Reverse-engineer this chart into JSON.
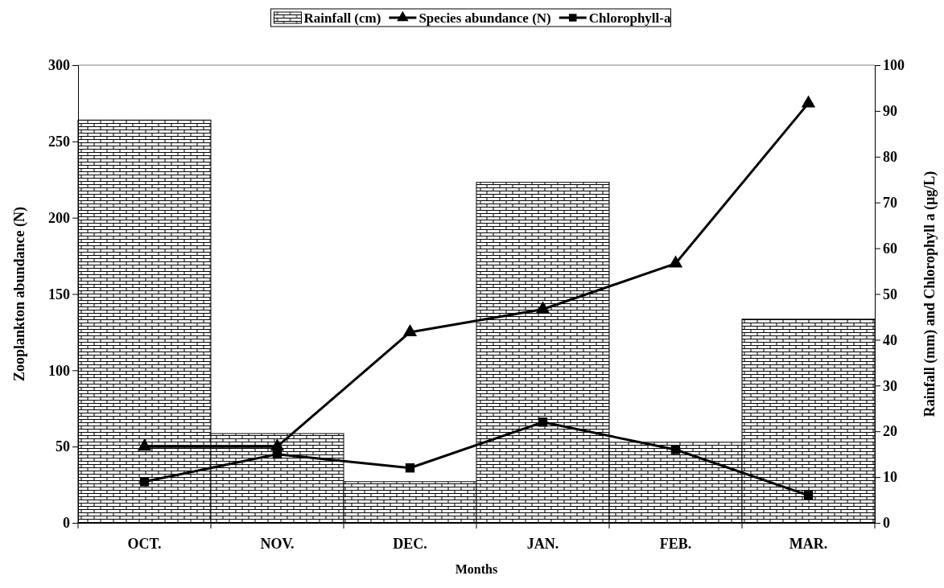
{
  "chart_data": {
    "type": "bar",
    "xlabel": "Months",
    "ylabel": "Zooplankton abundance (N)",
    "y2label": "Rainfall (mm) and Chlorophyll a (µg/L)",
    "categories": [
      "OCT.",
      "NOV.",
      "DEC.",
      "JAN.",
      "FEB.",
      "MAR."
    ],
    "series": [
      {
        "name": "Rainfall (cm)",
        "axis": "y2",
        "color": "#000000",
        "values": [
          88,
          19.5,
          9,
          74.4,
          17.6,
          44.5
        ]
      },
      {
        "name": "Species abundance (N)",
        "type": "line",
        "marker": "triangle",
        "color": "#000000",
        "values": [
          50,
          50,
          125,
          140,
          170,
          275
        ]
      },
      {
        "name": "Chlorophyll-a",
        "type": "line",
        "axis": "y2",
        "marker": "square",
        "color": "#000000",
        "values": [
          9,
          15,
          12,
          22,
          16,
          6
        ]
      }
    ],
    "ylim": [
      0,
      300
    ],
    "yticks": [
      0,
      50,
      100,
      150,
      200,
      250,
      300
    ],
    "y2lim": [
      0,
      100
    ],
    "y2ticks": [
      0,
      10,
      20,
      30,
      40,
      50,
      60,
      70,
      80,
      90,
      100
    ],
    "legend": "top",
    "grid": false
  }
}
